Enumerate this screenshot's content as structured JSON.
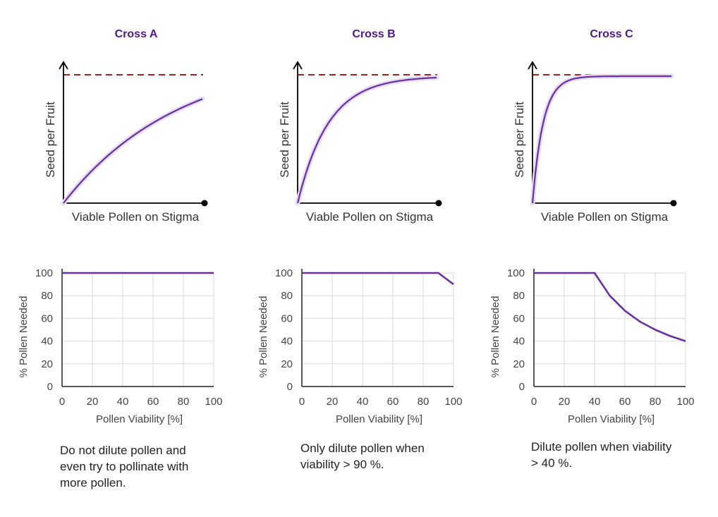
{
  "colors": {
    "curve": "#6a2fa0",
    "maximum_line": "#b01e1e",
    "title": "#4b1a8c",
    "grid": "#d9d9d9",
    "axis": "#000000"
  },
  "schematic_panels": [
    {
      "title": "Cross A",
      "ylabel": "Seed per Fruit",
      "xlabel": "Viable Pollen on Stigma",
      "curve_rate": 1.2,
      "maximum": 1.0
    },
    {
      "title": "Cross B",
      "ylabel": "Seed per Fruit",
      "xlabel": "Viable Pollen on Stigma",
      "curve_rate": 4.5,
      "maximum": 1.0
    },
    {
      "title": "Cross C",
      "ylabel": "Seed per Fruit",
      "xlabel": "Viable Pollen on Stigma",
      "curve_rate": 13,
      "maximum": 1.0
    }
  ],
  "chart_data": [
    {
      "type": "line",
      "title": "Cross A",
      "xlabel": "Pollen Viability [%]",
      "ylabel": "% Pollen Needed",
      "xlim": [
        0,
        100
      ],
      "ylim": [
        0,
        100
      ],
      "xticks": [
        "0",
        "20",
        "40",
        "60",
        "80",
        "100"
      ],
      "yticks": [
        "0",
        "20",
        "40",
        "60",
        "80",
        "100"
      ],
      "grid": true,
      "x": [
        0,
        100
      ],
      "y": [
        100,
        100
      ]
    },
    {
      "type": "line",
      "title": "Cross B",
      "xlabel": "Pollen Viability [%]",
      "ylabel": "% Pollen Needed",
      "xlim": [
        0,
        100
      ],
      "ylim": [
        0,
        100
      ],
      "xticks": [
        "0",
        "20",
        "40",
        "60",
        "80",
        "100"
      ],
      "yticks": [
        "0",
        "20",
        "40",
        "60",
        "80",
        "100"
      ],
      "grid": true,
      "x": [
        0,
        90,
        100
      ],
      "y": [
        100,
        100,
        90
      ]
    },
    {
      "type": "line",
      "title": "Cross C",
      "xlabel": "Pollen Viability [%]",
      "ylabel": "% Pollen Needed",
      "xlim": [
        0,
        100
      ],
      "ylim": [
        0,
        100
      ],
      "xticks": [
        "0",
        "20",
        "40",
        "60",
        "80",
        "100"
      ],
      "yticks": [
        "0",
        "20",
        "40",
        "60",
        "80",
        "100"
      ],
      "grid": true,
      "x": [
        0,
        40,
        50,
        60,
        70,
        80,
        90,
        100
      ],
      "y": [
        100,
        100,
        80,
        66.7,
        57.1,
        50,
        44.4,
        40
      ]
    }
  ],
  "notes": [
    "Do not dilute pollen and\neven try to pollinate with\nmore pollen.",
    "Only dilute pollen when\nviability > 90 %.",
    "Dilute pollen when viability\n> 40 %."
  ]
}
